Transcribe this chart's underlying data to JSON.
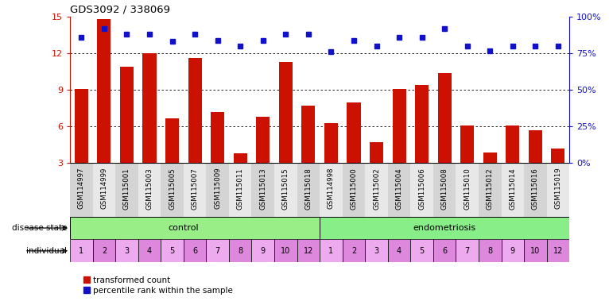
{
  "title": "GDS3092 / 338069",
  "samples": [
    "GSM114997",
    "GSM114999",
    "GSM115001",
    "GSM115003",
    "GSM115005",
    "GSM115007",
    "GSM115009",
    "GSM115011",
    "GSM115013",
    "GSM115015",
    "GSM115018",
    "GSM114998",
    "GSM115000",
    "GSM115002",
    "GSM115004",
    "GSM115006",
    "GSM115008",
    "GSM115010",
    "GSM115012",
    "GSM115014",
    "GSM115016",
    "GSM115019"
  ],
  "red_bars": [
    9.1,
    14.8,
    10.9,
    12.0,
    6.7,
    11.6,
    7.2,
    3.8,
    6.8,
    11.3,
    7.7,
    6.3,
    8.0,
    4.7,
    9.1,
    9.4,
    10.4,
    6.1,
    3.9,
    6.1,
    5.7,
    4.2
  ],
  "blue_dots": [
    86,
    92,
    88,
    88,
    83,
    88,
    84,
    80,
    84,
    88,
    88,
    76,
    84,
    80,
    86,
    86,
    92,
    80,
    77,
    80,
    80,
    80
  ],
  "individuals_control": [
    1,
    2,
    3,
    4,
    5,
    6,
    7,
    8,
    9,
    10,
    12
  ],
  "individuals_endo": [
    1,
    2,
    3,
    4,
    5,
    6,
    7,
    8,
    9,
    10,
    12
  ],
  "disease_state_control": "control",
  "disease_state_endo": "endometriosis",
  "ylim_left": [
    3,
    15
  ],
  "ylim_right": [
    0,
    100
  ],
  "yticks_left": [
    3,
    6,
    9,
    12,
    15
  ],
  "yticks_right": [
    0,
    25,
    50,
    75,
    100
  ],
  "bar_color": "#cc1100",
  "dot_color": "#1111cc",
  "control_bg": "#99ee88",
  "endo_bg": "#88ee88",
  "ind_even_bg": "#dd88dd",
  "ind_odd_bg": "#eeaaee",
  "tick_bg_even": "#d4d4d4",
  "tick_bg_odd": "#e8e8e8",
  "legend_bar_label": "transformed count",
  "legend_dot_label": "percentile rank within the sample"
}
